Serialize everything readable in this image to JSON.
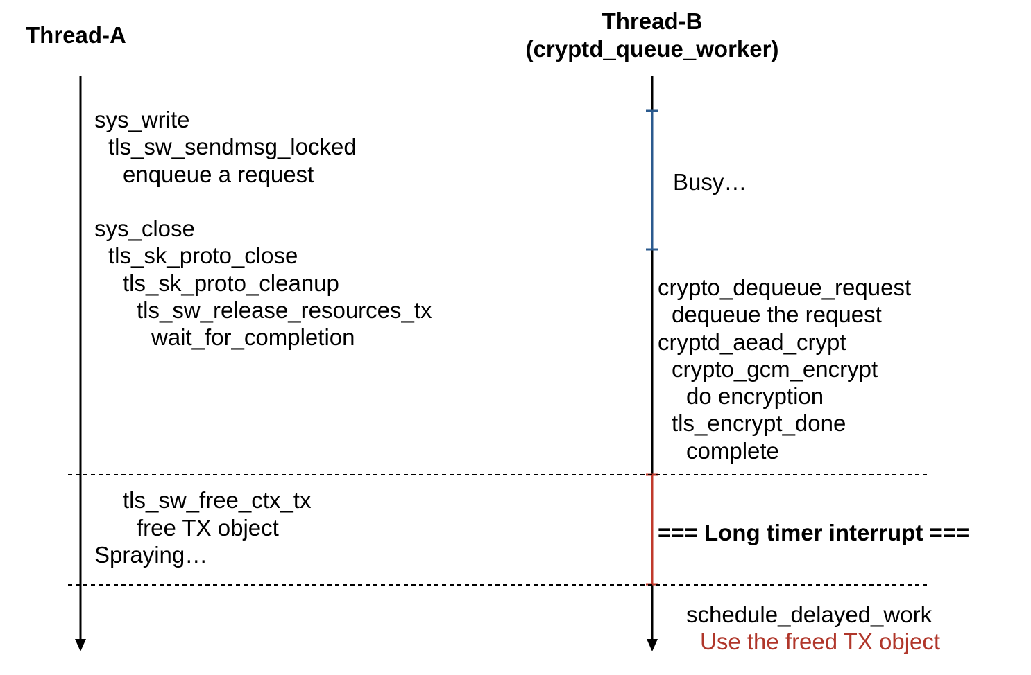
{
  "thread_a": {
    "title": "Thread-A",
    "lines": [
      "sys_write",
      "tls_sw_sendmsg_locked",
      "enqueue a request",
      "sys_close",
      "tls_sk_proto_close",
      "tls_sk_proto_cleanup",
      "tls_sw_release_resources_tx",
      "wait_for_completion",
      "tls_sw_free_ctx_tx",
      "free TX object",
      "Spraying…"
    ]
  },
  "thread_b": {
    "title": "Thread-B",
    "subtitle": "(cryptd_queue_worker)",
    "busy": "Busy…",
    "lines": [
      "crypto_dequeue_request",
      "dequeue the request",
      "cryptd_aead_crypt",
      "crypto_gcm_encrypt",
      "do encryption",
      "tls_encrypt_done",
      "complete"
    ],
    "interrupt": "=== Long timer interrupt ===",
    "after": "schedule_delayed_work",
    "use_after_free": "Use the freed TX object"
  },
  "colors": {
    "busy_segment": "#2b5a8e",
    "interrupt_segment": "#c0392b",
    "highlight_text": "#b0362a"
  }
}
